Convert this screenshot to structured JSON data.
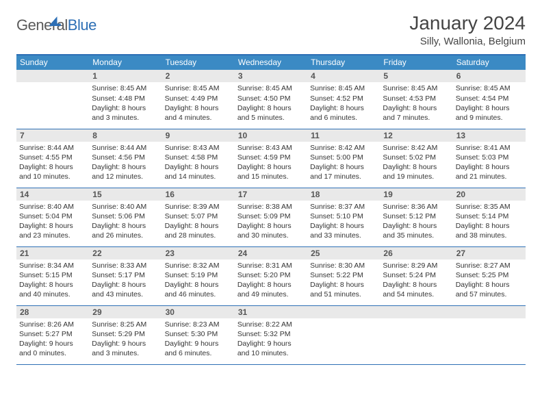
{
  "brand": {
    "part1": "General",
    "part2": "Blue"
  },
  "title": "January 2024",
  "location": "Silly, Wallonia, Belgium",
  "colors": {
    "header_bg": "#3b8ac4",
    "header_text": "#ffffff",
    "rule": "#2d6fb5",
    "daynum_bg": "#e9e9e9",
    "text": "#333333"
  },
  "weekdays": [
    "Sunday",
    "Monday",
    "Tuesday",
    "Wednesday",
    "Thursday",
    "Friday",
    "Saturday"
  ],
  "weeks": [
    [
      {
        "n": "",
        "lines": [
          "",
          "",
          "",
          ""
        ]
      },
      {
        "n": "1",
        "lines": [
          "Sunrise: 8:45 AM",
          "Sunset: 4:48 PM",
          "Daylight: 8 hours",
          "and 3 minutes."
        ]
      },
      {
        "n": "2",
        "lines": [
          "Sunrise: 8:45 AM",
          "Sunset: 4:49 PM",
          "Daylight: 8 hours",
          "and 4 minutes."
        ]
      },
      {
        "n": "3",
        "lines": [
          "Sunrise: 8:45 AM",
          "Sunset: 4:50 PM",
          "Daylight: 8 hours",
          "and 5 minutes."
        ]
      },
      {
        "n": "4",
        "lines": [
          "Sunrise: 8:45 AM",
          "Sunset: 4:52 PM",
          "Daylight: 8 hours",
          "and 6 minutes."
        ]
      },
      {
        "n": "5",
        "lines": [
          "Sunrise: 8:45 AM",
          "Sunset: 4:53 PM",
          "Daylight: 8 hours",
          "and 7 minutes."
        ]
      },
      {
        "n": "6",
        "lines": [
          "Sunrise: 8:45 AM",
          "Sunset: 4:54 PM",
          "Daylight: 8 hours",
          "and 9 minutes."
        ]
      }
    ],
    [
      {
        "n": "7",
        "lines": [
          "Sunrise: 8:44 AM",
          "Sunset: 4:55 PM",
          "Daylight: 8 hours",
          "and 10 minutes."
        ]
      },
      {
        "n": "8",
        "lines": [
          "Sunrise: 8:44 AM",
          "Sunset: 4:56 PM",
          "Daylight: 8 hours",
          "and 12 minutes."
        ]
      },
      {
        "n": "9",
        "lines": [
          "Sunrise: 8:43 AM",
          "Sunset: 4:58 PM",
          "Daylight: 8 hours",
          "and 14 minutes."
        ]
      },
      {
        "n": "10",
        "lines": [
          "Sunrise: 8:43 AM",
          "Sunset: 4:59 PM",
          "Daylight: 8 hours",
          "and 15 minutes."
        ]
      },
      {
        "n": "11",
        "lines": [
          "Sunrise: 8:42 AM",
          "Sunset: 5:00 PM",
          "Daylight: 8 hours",
          "and 17 minutes."
        ]
      },
      {
        "n": "12",
        "lines": [
          "Sunrise: 8:42 AM",
          "Sunset: 5:02 PM",
          "Daylight: 8 hours",
          "and 19 minutes."
        ]
      },
      {
        "n": "13",
        "lines": [
          "Sunrise: 8:41 AM",
          "Sunset: 5:03 PM",
          "Daylight: 8 hours",
          "and 21 minutes."
        ]
      }
    ],
    [
      {
        "n": "14",
        "lines": [
          "Sunrise: 8:40 AM",
          "Sunset: 5:04 PM",
          "Daylight: 8 hours",
          "and 23 minutes."
        ]
      },
      {
        "n": "15",
        "lines": [
          "Sunrise: 8:40 AM",
          "Sunset: 5:06 PM",
          "Daylight: 8 hours",
          "and 26 minutes."
        ]
      },
      {
        "n": "16",
        "lines": [
          "Sunrise: 8:39 AM",
          "Sunset: 5:07 PM",
          "Daylight: 8 hours",
          "and 28 minutes."
        ]
      },
      {
        "n": "17",
        "lines": [
          "Sunrise: 8:38 AM",
          "Sunset: 5:09 PM",
          "Daylight: 8 hours",
          "and 30 minutes."
        ]
      },
      {
        "n": "18",
        "lines": [
          "Sunrise: 8:37 AM",
          "Sunset: 5:10 PM",
          "Daylight: 8 hours",
          "and 33 minutes."
        ]
      },
      {
        "n": "19",
        "lines": [
          "Sunrise: 8:36 AM",
          "Sunset: 5:12 PM",
          "Daylight: 8 hours",
          "and 35 minutes."
        ]
      },
      {
        "n": "20",
        "lines": [
          "Sunrise: 8:35 AM",
          "Sunset: 5:14 PM",
          "Daylight: 8 hours",
          "and 38 minutes."
        ]
      }
    ],
    [
      {
        "n": "21",
        "lines": [
          "Sunrise: 8:34 AM",
          "Sunset: 5:15 PM",
          "Daylight: 8 hours",
          "and 40 minutes."
        ]
      },
      {
        "n": "22",
        "lines": [
          "Sunrise: 8:33 AM",
          "Sunset: 5:17 PM",
          "Daylight: 8 hours",
          "and 43 minutes."
        ]
      },
      {
        "n": "23",
        "lines": [
          "Sunrise: 8:32 AM",
          "Sunset: 5:19 PM",
          "Daylight: 8 hours",
          "and 46 minutes."
        ]
      },
      {
        "n": "24",
        "lines": [
          "Sunrise: 8:31 AM",
          "Sunset: 5:20 PM",
          "Daylight: 8 hours",
          "and 49 minutes."
        ]
      },
      {
        "n": "25",
        "lines": [
          "Sunrise: 8:30 AM",
          "Sunset: 5:22 PM",
          "Daylight: 8 hours",
          "and 51 minutes."
        ]
      },
      {
        "n": "26",
        "lines": [
          "Sunrise: 8:29 AM",
          "Sunset: 5:24 PM",
          "Daylight: 8 hours",
          "and 54 minutes."
        ]
      },
      {
        "n": "27",
        "lines": [
          "Sunrise: 8:27 AM",
          "Sunset: 5:25 PM",
          "Daylight: 8 hours",
          "and 57 minutes."
        ]
      }
    ],
    [
      {
        "n": "28",
        "lines": [
          "Sunrise: 8:26 AM",
          "Sunset: 5:27 PM",
          "Daylight: 9 hours",
          "and 0 minutes."
        ]
      },
      {
        "n": "29",
        "lines": [
          "Sunrise: 8:25 AM",
          "Sunset: 5:29 PM",
          "Daylight: 9 hours",
          "and 3 minutes."
        ]
      },
      {
        "n": "30",
        "lines": [
          "Sunrise: 8:23 AM",
          "Sunset: 5:30 PM",
          "Daylight: 9 hours",
          "and 6 minutes."
        ]
      },
      {
        "n": "31",
        "lines": [
          "Sunrise: 8:22 AM",
          "Sunset: 5:32 PM",
          "Daylight: 9 hours",
          "and 10 minutes."
        ]
      },
      {
        "n": "",
        "lines": [
          "",
          "",
          "",
          ""
        ]
      },
      {
        "n": "",
        "lines": [
          "",
          "",
          "",
          ""
        ]
      },
      {
        "n": "",
        "lines": [
          "",
          "",
          "",
          ""
        ]
      }
    ]
  ]
}
